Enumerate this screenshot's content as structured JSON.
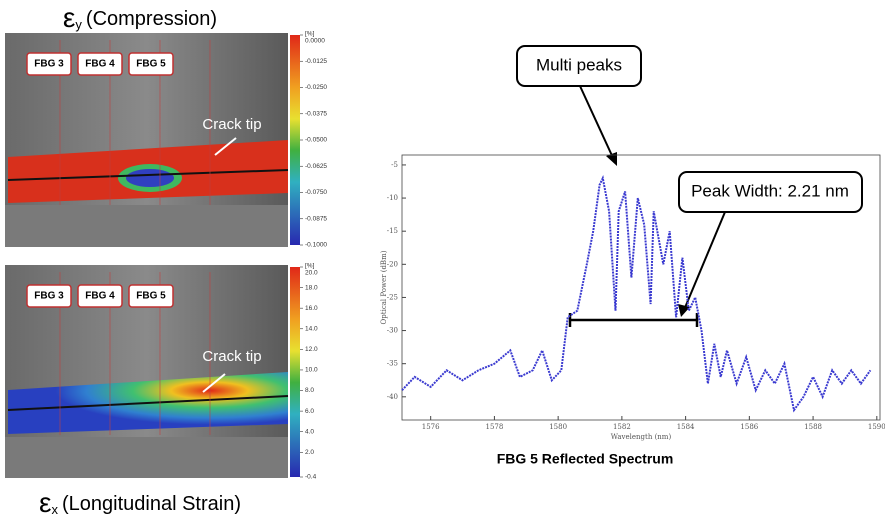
{
  "panels": [
    {
      "symbol": "ε",
      "subscript": "y",
      "caption": "(Compression)",
      "sensors": [
        "FBG 3",
        "FBG 4",
        "FBG 5"
      ],
      "annotation": "Crack tip",
      "colorbar": {
        "unit": "[%]",
        "lim": [
          -0.1,
          0
        ],
        "ticks": [
          {
            "value": 0,
            "label": "0.0000"
          },
          {
            "value": -0.0125,
            "label": "-0.0125"
          },
          {
            "value": -0.025,
            "label": "-0.0250"
          },
          {
            "value": -0.0375,
            "label": "-0.0375"
          },
          {
            "value": -0.05,
            "label": "-0.0500"
          },
          {
            "value": -0.0625,
            "label": "-0.0625"
          },
          {
            "value": -0.075,
            "label": "-0.0750"
          },
          {
            "value": -0.0875,
            "label": "-0.0875"
          },
          {
            "value": -0.1,
            "label": "-0.1000"
          }
        ]
      }
    },
    {
      "symbol": "ε",
      "subscript": "x",
      "caption": "(Longitudinal Strain)",
      "sensors": [
        "FBG 3",
        "FBG 4",
        "FBG 5"
      ],
      "annotation": "Crack tip",
      "colorbar": {
        "unit": "[%]",
        "lim": [
          -0.4,
          20
        ],
        "ticks": [
          {
            "value": 20,
            "label": "20.0"
          },
          {
            "value": 18,
            "label": "18.0"
          },
          {
            "value": 16,
            "label": "16.0"
          },
          {
            "value": 14,
            "label": "14.0"
          },
          {
            "value": 12,
            "label": "12.0"
          },
          {
            "value": 10,
            "label": "10.0"
          },
          {
            "value": 8,
            "label": "8.0"
          },
          {
            "value": 6,
            "label": "6.0"
          },
          {
            "value": 4,
            "label": "4.0"
          },
          {
            "value": 2,
            "label": "2.0"
          },
          -0.4
        ]
      }
    }
  ],
  "chart_data": {
    "type": "line",
    "title": "FBG 5 Reflected Spectrum",
    "x_label": "Wavelength (nm)",
    "y_label": "Optical Power (dBm)",
    "annotations": [
      "Multi peaks",
      "Peak Width: 2.21 nm"
    ],
    "x": [
      1575.1,
      1575.5,
      1576.0,
      1576.5,
      1577.0,
      1577.5,
      1578.0,
      1578.5,
      1578.8,
      1579.2,
      1579.5,
      1579.8,
      1580.1,
      1580.3,
      1580.6,
      1580.9,
      1581.1,
      1581.3,
      1581.4,
      1581.6,
      1581.8,
      1581.9,
      1582.1,
      1582.3,
      1582.5,
      1582.7,
      1582.9,
      1583.0,
      1583.3,
      1583.5,
      1583.7,
      1583.9,
      1584.1,
      1584.3,
      1584.5,
      1584.7,
      1584.9,
      1585.1,
      1585.3,
      1585.6,
      1585.9,
      1586.2,
      1586.5,
      1586.8,
      1587.1,
      1587.4,
      1587.7,
      1588.0,
      1588.3,
      1588.6,
      1588.9,
      1589.2,
      1589.5,
      1589.8
    ],
    "series": [
      {
        "color": "#3a3ad0",
        "values": [
          -39,
          -37,
          -38.5,
          -36,
          -37.5,
          -36,
          -35,
          -33,
          -37,
          -36,
          -33,
          -37.5,
          -36,
          -28,
          -27,
          -20,
          -15,
          -8,
          -7,
          -12,
          -27,
          -12,
          -9,
          -22,
          -10,
          -14,
          -26,
          -12,
          -20,
          -15,
          -28,
          -19,
          -27,
          -25,
          -30,
          -38,
          -32,
          -37,
          -33,
          -38,
          -34,
          -39,
          -36,
          -38,
          -35,
          -42,
          -40,
          -37,
          -40,
          -36,
          -38,
          -36,
          -38,
          -36
        ]
      }
    ],
    "xlim": [
      1575.1,
      1590.1
    ],
    "ylim": [
      -43.5,
      -3.5
    ],
    "xticks": [
      1576,
      1578,
      1580,
      1582,
      1584,
      1586,
      1588,
      1590
    ],
    "yticks": [
      -5,
      -10,
      -15,
      -20,
      -25,
      -30,
      -35,
      -40
    ]
  }
}
